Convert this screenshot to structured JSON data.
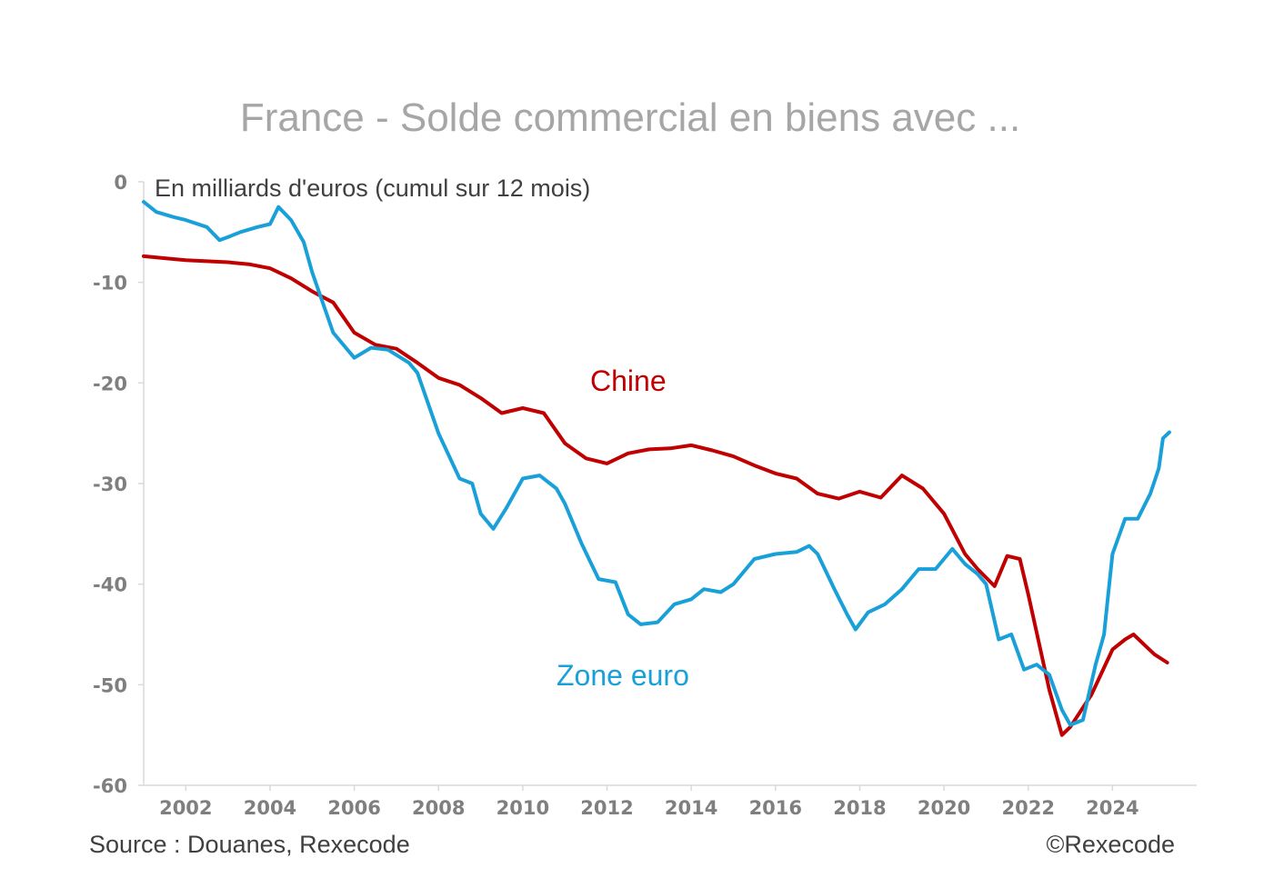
{
  "chart_data": {
    "type": "line",
    "title": "France - Solde commercial en biens avec ...",
    "unit_note": "En milliards d'euros (cumul sur 12 mois)",
    "source": "Source : Douanes, Rexecode",
    "copyright": "©Rexecode",
    "xlim": [
      2001.0,
      2026.0
    ],
    "ylim": [
      -60,
      0
    ],
    "x_ticks": [
      2002,
      2004,
      2006,
      2008,
      2010,
      2012,
      2014,
      2016,
      2018,
      2020,
      2022,
      2024
    ],
    "y_ticks": [
      0,
      -10,
      -20,
      -30,
      -40,
      -50,
      -60
    ],
    "grid": false,
    "series": [
      {
        "name": "Chine",
        "color": "#c00000",
        "points": [
          [
            2001.0,
            -7.4
          ],
          [
            2001.5,
            -7.6
          ],
          [
            2002.0,
            -7.8
          ],
          [
            2002.5,
            -7.9
          ],
          [
            2003.0,
            -8.0
          ],
          [
            2003.5,
            -8.2
          ],
          [
            2004.0,
            -8.6
          ],
          [
            2004.5,
            -9.6
          ],
          [
            2005.0,
            -10.9
          ],
          [
            2005.5,
            -12.0
          ],
          [
            2006.0,
            -15.0
          ],
          [
            2006.5,
            -16.2
          ],
          [
            2007.0,
            -16.6
          ],
          [
            2007.5,
            -18.0
          ],
          [
            2008.0,
            -19.5
          ],
          [
            2008.5,
            -20.2
          ],
          [
            2009.0,
            -21.5
          ],
          [
            2009.5,
            -23.0
          ],
          [
            2010.0,
            -22.5
          ],
          [
            2010.5,
            -23.0
          ],
          [
            2011.0,
            -26.0
          ],
          [
            2011.5,
            -27.5
          ],
          [
            2012.0,
            -28.0
          ],
          [
            2012.5,
            -27.0
          ],
          [
            2013.0,
            -26.6
          ],
          [
            2013.5,
            -26.5
          ],
          [
            2014.0,
            -26.2
          ],
          [
            2014.5,
            -26.7
          ],
          [
            2015.0,
            -27.3
          ],
          [
            2015.5,
            -28.2
          ],
          [
            2016.0,
            -29.0
          ],
          [
            2016.5,
            -29.5
          ],
          [
            2017.0,
            -31.0
          ],
          [
            2017.5,
            -31.5
          ],
          [
            2018.0,
            -30.8
          ],
          [
            2018.5,
            -31.4
          ],
          [
            2019.0,
            -29.2
          ],
          [
            2019.5,
            -30.5
          ],
          [
            2020.0,
            -33.0
          ],
          [
            2020.5,
            -37.0
          ],
          [
            2020.8,
            -38.5
          ],
          [
            2021.2,
            -40.2
          ],
          [
            2021.5,
            -37.2
          ],
          [
            2021.8,
            -37.5
          ],
          [
            2022.0,
            -41.0
          ],
          [
            2022.5,
            -50.5
          ],
          [
            2022.8,
            -55.0
          ],
          [
            2023.0,
            -54.2
          ],
          [
            2023.5,
            -51.0
          ],
          [
            2024.0,
            -46.5
          ],
          [
            2024.3,
            -45.5
          ],
          [
            2024.5,
            -45.0
          ],
          [
            2024.8,
            -46.2
          ],
          [
            2025.0,
            -47.0
          ],
          [
            2025.3,
            -47.8
          ]
        ]
      },
      {
        "name": "Zone euro",
        "color": "#1aa0d8",
        "points": [
          [
            2001.0,
            -2.0
          ],
          [
            2001.3,
            -3.0
          ],
          [
            2001.7,
            -3.5
          ],
          [
            2002.0,
            -3.8
          ],
          [
            2002.5,
            -4.5
          ],
          [
            2002.8,
            -5.8
          ],
          [
            2003.0,
            -5.5
          ],
          [
            2003.3,
            -5.0
          ],
          [
            2003.7,
            -4.5
          ],
          [
            2004.0,
            -4.2
          ],
          [
            2004.2,
            -2.5
          ],
          [
            2004.5,
            -3.8
          ],
          [
            2004.8,
            -6.0
          ],
          [
            2005.0,
            -9.0
          ],
          [
            2005.5,
            -15.0
          ],
          [
            2006.0,
            -17.5
          ],
          [
            2006.4,
            -16.5
          ],
          [
            2006.8,
            -16.7
          ],
          [
            2007.3,
            -18.0
          ],
          [
            2007.5,
            -19.0
          ],
          [
            2008.0,
            -25.0
          ],
          [
            2008.5,
            -29.5
          ],
          [
            2008.8,
            -30.0
          ],
          [
            2009.0,
            -33.0
          ],
          [
            2009.3,
            -34.5
          ],
          [
            2009.6,
            -32.5
          ],
          [
            2010.0,
            -29.5
          ],
          [
            2010.4,
            -29.2
          ],
          [
            2010.8,
            -30.5
          ],
          [
            2011.0,
            -32.0
          ],
          [
            2011.4,
            -36.0
          ],
          [
            2011.8,
            -39.5
          ],
          [
            2012.2,
            -39.8
          ],
          [
            2012.5,
            -43.0
          ],
          [
            2012.8,
            -44.0
          ],
          [
            2013.2,
            -43.8
          ],
          [
            2013.6,
            -42.0
          ],
          [
            2014.0,
            -41.5
          ],
          [
            2014.3,
            -40.5
          ],
          [
            2014.7,
            -40.8
          ],
          [
            2015.0,
            -40.0
          ],
          [
            2015.5,
            -37.5
          ],
          [
            2016.0,
            -37.0
          ],
          [
            2016.5,
            -36.8
          ],
          [
            2016.8,
            -36.2
          ],
          [
            2017.0,
            -37.0
          ],
          [
            2017.4,
            -40.5
          ],
          [
            2017.7,
            -43.0
          ],
          [
            2017.9,
            -44.5
          ],
          [
            2018.2,
            -42.8
          ],
          [
            2018.6,
            -42.0
          ],
          [
            2019.0,
            -40.5
          ],
          [
            2019.4,
            -38.5
          ],
          [
            2019.8,
            -38.5
          ],
          [
            2020.2,
            -36.5
          ],
          [
            2020.5,
            -38.0
          ],
          [
            2020.8,
            -39.0
          ],
          [
            2021.0,
            -40.0
          ],
          [
            2021.3,
            -45.5
          ],
          [
            2021.6,
            -45.0
          ],
          [
            2021.9,
            -48.5
          ],
          [
            2022.2,
            -48.0
          ],
          [
            2022.5,
            -49.0
          ],
          [
            2022.8,
            -52.5
          ],
          [
            2023.0,
            -54.0
          ],
          [
            2023.3,
            -53.5
          ],
          [
            2023.6,
            -48.0
          ],
          [
            2023.8,
            -45.0
          ],
          [
            2023.9,
            -41.0
          ],
          [
            2024.0,
            -37.0
          ],
          [
            2024.3,
            -33.5
          ],
          [
            2024.6,
            -33.5
          ],
          [
            2024.9,
            -31.0
          ],
          [
            2025.1,
            -28.5
          ],
          [
            2025.2,
            -25.5
          ],
          [
            2025.35,
            -24.9
          ]
        ]
      }
    ],
    "series_labels": [
      "Chine",
      "Zone euro"
    ]
  }
}
